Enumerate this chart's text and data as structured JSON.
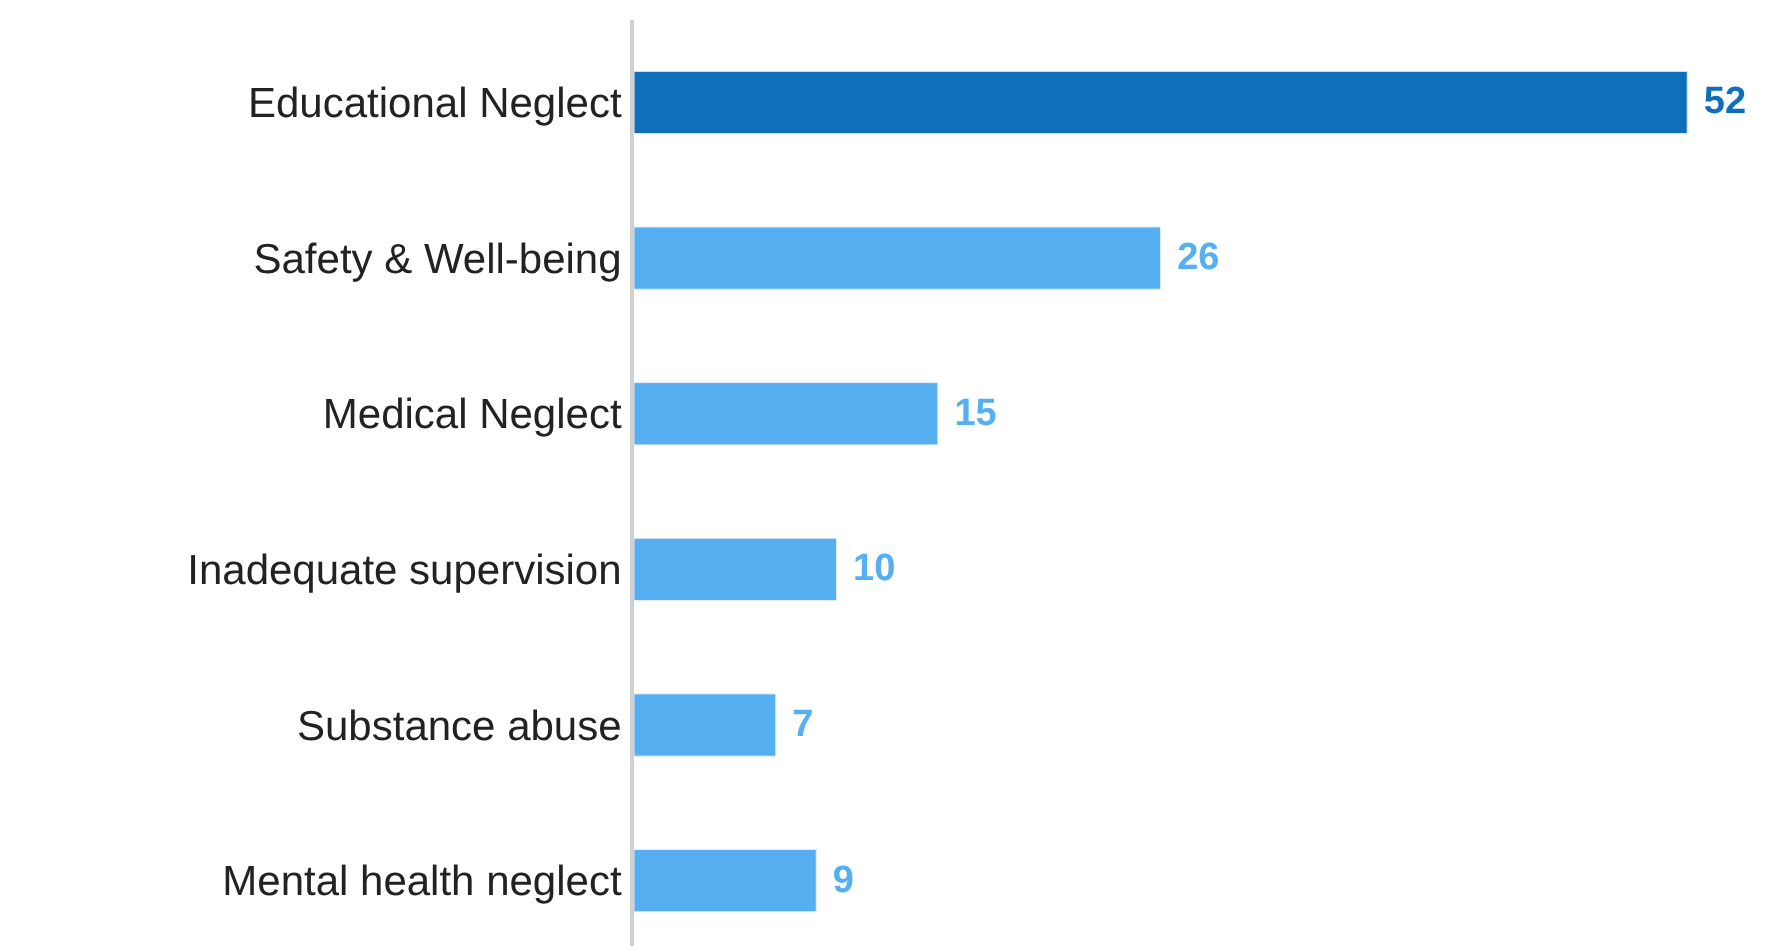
{
  "chart_data": {
    "type": "bar",
    "orientation": "horizontal",
    "categories": [
      "Educational Neglect",
      "Safety & Well-being",
      "Medical Neglect",
      "Inadequate supervision",
      "Substance abuse",
      "Mental health neglect"
    ],
    "values": [
      52,
      26,
      15,
      10,
      7,
      9
    ],
    "colors": [
      "#0f6fba",
      "#55aff0",
      "#55aff0",
      "#55aff0",
      "#55aff0",
      "#55aff0"
    ],
    "data_labels": true
  }
}
